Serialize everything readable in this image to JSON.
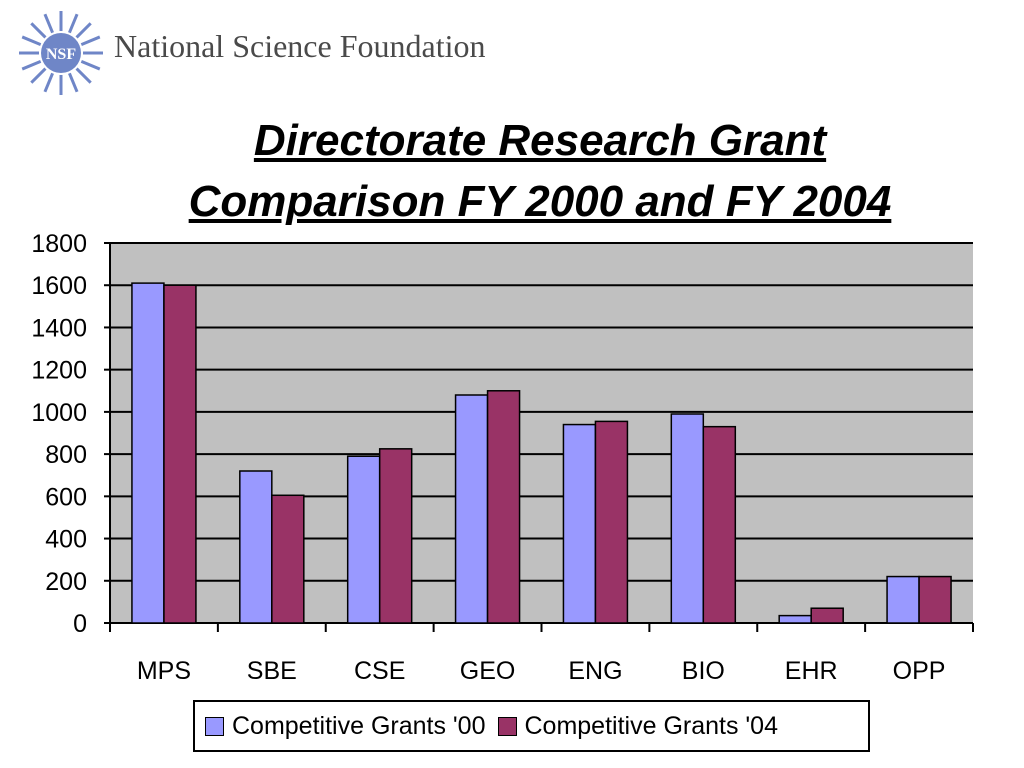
{
  "header": {
    "org_name": "National Science Foundation",
    "logo_text": "NSF",
    "logo_color": "#6f86c7"
  },
  "title": {
    "line1": "Directorate Research Grant",
    "line2": "Comparison FY 2000 and FY 2004"
  },
  "chart_data": {
    "type": "bar",
    "categories": [
      "MPS",
      "SBE",
      "CSE",
      "GEO",
      "ENG",
      "BIO",
      "EHR",
      "OPP"
    ],
    "series": [
      {
        "name": "Competitive Grants '00",
        "color": "#9999ff",
        "values": [
          1610,
          720,
          790,
          1080,
          940,
          990,
          35,
          220
        ]
      },
      {
        "name": "Competitive Grants '04",
        "color": "#993366",
        "values": [
          1600,
          605,
          825,
          1100,
          955,
          930,
          70,
          220
        ]
      }
    ],
    "ylim": [
      0,
      1800
    ],
    "yticks": [
      0,
      200,
      400,
      600,
      800,
      1000,
      1200,
      1400,
      1600,
      1800
    ],
    "ytick_labels": [
      "0",
      "200",
      "400",
      "600",
      "800",
      "1000",
      "1200",
      "1400",
      "1600",
      "1800"
    ],
    "grid": true,
    "plot_background": "#c0c0c0",
    "legend_position": "bottom"
  }
}
